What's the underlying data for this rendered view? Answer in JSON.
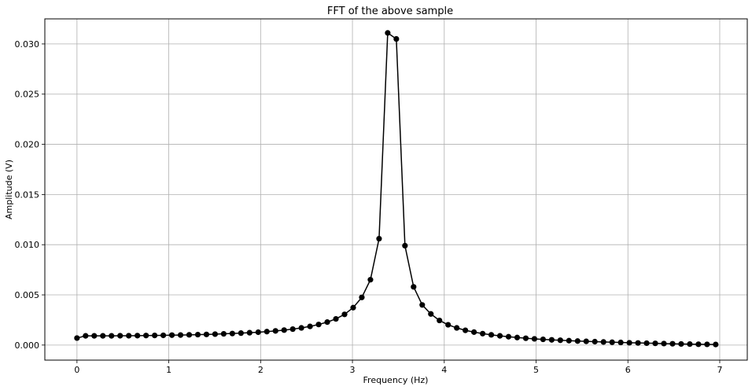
{
  "chart_data": {
    "type": "line",
    "title": "FFT of the above sample",
    "xlabel": "Frequency (Hz)",
    "ylabel": "Amplitude (V)",
    "xlim": [
      -0.35,
      7.3
    ],
    "ylim": [
      -0.0015,
      0.0325
    ],
    "xticks": [
      0,
      1,
      2,
      3,
      4,
      5,
      6,
      7
    ],
    "xtick_labels": [
      "0",
      "1",
      "2",
      "3",
      "4",
      "5",
      "6",
      "7"
    ],
    "yticks": [
      0.0,
      0.005,
      0.01,
      0.015,
      0.02,
      0.025,
      0.03
    ],
    "ytick_labels": [
      "0.000",
      "0.005",
      "0.010",
      "0.015",
      "0.020",
      "0.025",
      "0.030"
    ],
    "grid": true,
    "line_color": "#000000",
    "marker": "circle",
    "series": [
      {
        "x": [
          0.0,
          0.094,
          0.188,
          0.282,
          0.376,
          0.47,
          0.564,
          0.658,
          0.752,
          0.846,
          0.94,
          1.034,
          1.128,
          1.222,
          1.316,
          1.41,
          1.504,
          1.598,
          1.692,
          1.786,
          1.88,
          1.974,
          2.068,
          2.162,
          2.256,
          2.35,
          2.444,
          2.538,
          2.632,
          2.726,
          2.82,
          2.914,
          3.008,
          3.102,
          3.196,
          3.29,
          3.384,
          3.478,
          3.572,
          3.666,
          3.76,
          3.854,
          3.948,
          4.042,
          4.136,
          4.23,
          4.324,
          4.418,
          4.512,
          4.606,
          4.7,
          4.794,
          4.888,
          4.982,
          5.076,
          5.17,
          5.264,
          5.358,
          5.452,
          5.546,
          5.64,
          5.734,
          5.828,
          5.922,
          6.016,
          6.11,
          6.204,
          6.298,
          6.392,
          6.486,
          6.58,
          6.674,
          6.768,
          6.862,
          6.956
        ],
        "values": [
          0.0007,
          0.00092,
          0.00092,
          0.00092,
          0.00092,
          0.00093,
          0.00093,
          0.00094,
          0.00095,
          0.00096,
          0.00097,
          0.00099,
          0.001,
          0.00102,
          0.00104,
          0.00106,
          0.00109,
          0.00112,
          0.00115,
          0.00119,
          0.00123,
          0.00128,
          0.00134,
          0.00141,
          0.00149,
          0.00159,
          0.00171,
          0.00186,
          0.00205,
          0.00229,
          0.00261,
          0.00306,
          0.00373,
          0.00475,
          0.00651,
          0.0106,
          0.0311,
          0.0305,
          0.0099,
          0.0058,
          0.004,
          0.0031,
          0.00245,
          0.00202,
          0.00171,
          0.00147,
          0.00129,
          0.00114,
          0.00102,
          0.00092,
          0.00083,
          0.00075,
          0.00068,
          0.00062,
          0.00057,
          0.00052,
          0.00048,
          0.00044,
          0.0004,
          0.00037,
          0.00034,
          0.00031,
          0.00028,
          0.00026,
          0.00023,
          0.00021,
          0.00019,
          0.00017,
          0.00015,
          0.00013,
          0.00011,
          0.0001,
          8e-05,
          7e-05,
          6e-05
        ]
      }
    ]
  }
}
